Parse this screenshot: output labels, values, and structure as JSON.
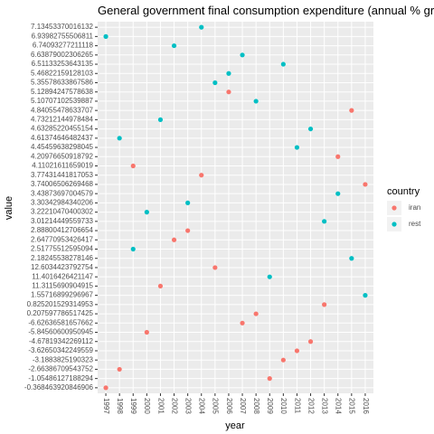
{
  "chart_data": {
    "type": "scatter",
    "title": "General government final consumption expenditure (annual % growth)",
    "x_label": "year",
    "y_label": "value",
    "legend_title": "country",
    "categories": [
      "1997",
      "1998",
      "1999",
      "2000",
      "2001",
      "2002",
      "2003",
      "2004",
      "2005",
      "2006",
      "2007",
      "2008",
      "2009",
      "2010",
      "2011",
      "2012",
      "2013",
      "2014",
      "2015",
      "2016"
    ],
    "y_categories": [
      "-0.368463920846906",
      "-1.05486127188294",
      "-2.66386709543752",
      "-3.1883825190323",
      "-3.62650342249559",
      "-4.67819342269112",
      "-5.84560600950945",
      "-6.62636581657662",
      "0.207597786517425",
      "0.825201529314953",
      "1.55716899296967",
      "11.3115690904915",
      "11.4016426421147",
      "12.6034423792754",
      "2.18245538278146",
      "2.51775512595094",
      "2.64770953426417",
      "2.88800412706654",
      "3.01214449559733",
      "3.22210470400302",
      "3.30342984340206",
      "3.43873697004579",
      "3.74006506269468",
      "3.77431441817053",
      "4.11021611659019",
      "4.20976650918792",
      "4.45459638298045",
      "4.61374646482437",
      "4.63285220455154",
      "4.73212144978484",
      "4.84055478633707",
      "5.10707102539887",
      "5.12894247578638",
      "5.35578633867586",
      "5.46822159128103",
      "6.51133253643135",
      "6.63879002306265",
      "6.74093277211118",
      "6.93982755506811",
      "7.13453370016132"
    ],
    "series": [
      {
        "name": "iran",
        "color": "#f8766d",
        "values": [
          "-0.368463920846906",
          "-2.66386709543752",
          "4.11021611659019",
          "-5.84560600950945",
          "11.3115690904915",
          "2.64770953426417",
          "2.88800412706654",
          "3.77431441817053",
          "12.6034423792754",
          "5.12894247578638",
          "-6.62636581657662",
          "0.207597786517425",
          "-1.05486127188294",
          "-3.1883825190323",
          "-3.62650342249559",
          "-4.67819342269112",
          "0.825201529314953",
          "4.20976650918792",
          "4.84055478633707",
          "3.74006506269468"
        ]
      },
      {
        "name": "rest",
        "color": "#00bfc4",
        "values": [
          "6.93982755506811",
          "4.61374646482437",
          "2.51775512595094",
          "3.22210470400302",
          "4.73212144978484",
          "6.74093277211118",
          "3.30342984340206",
          "7.13453370016132",
          "5.35578633867586",
          "5.46822159128103",
          "6.63879002306265",
          "5.10707102539887",
          "11.4016426421147",
          "6.51133253643135",
          "4.45459638298045",
          "4.63285220455154",
          "3.01214449559733",
          "3.43873697004579",
          "2.18245538278146",
          "1.55716899296967"
        ]
      }
    ],
    "grid": true
  }
}
